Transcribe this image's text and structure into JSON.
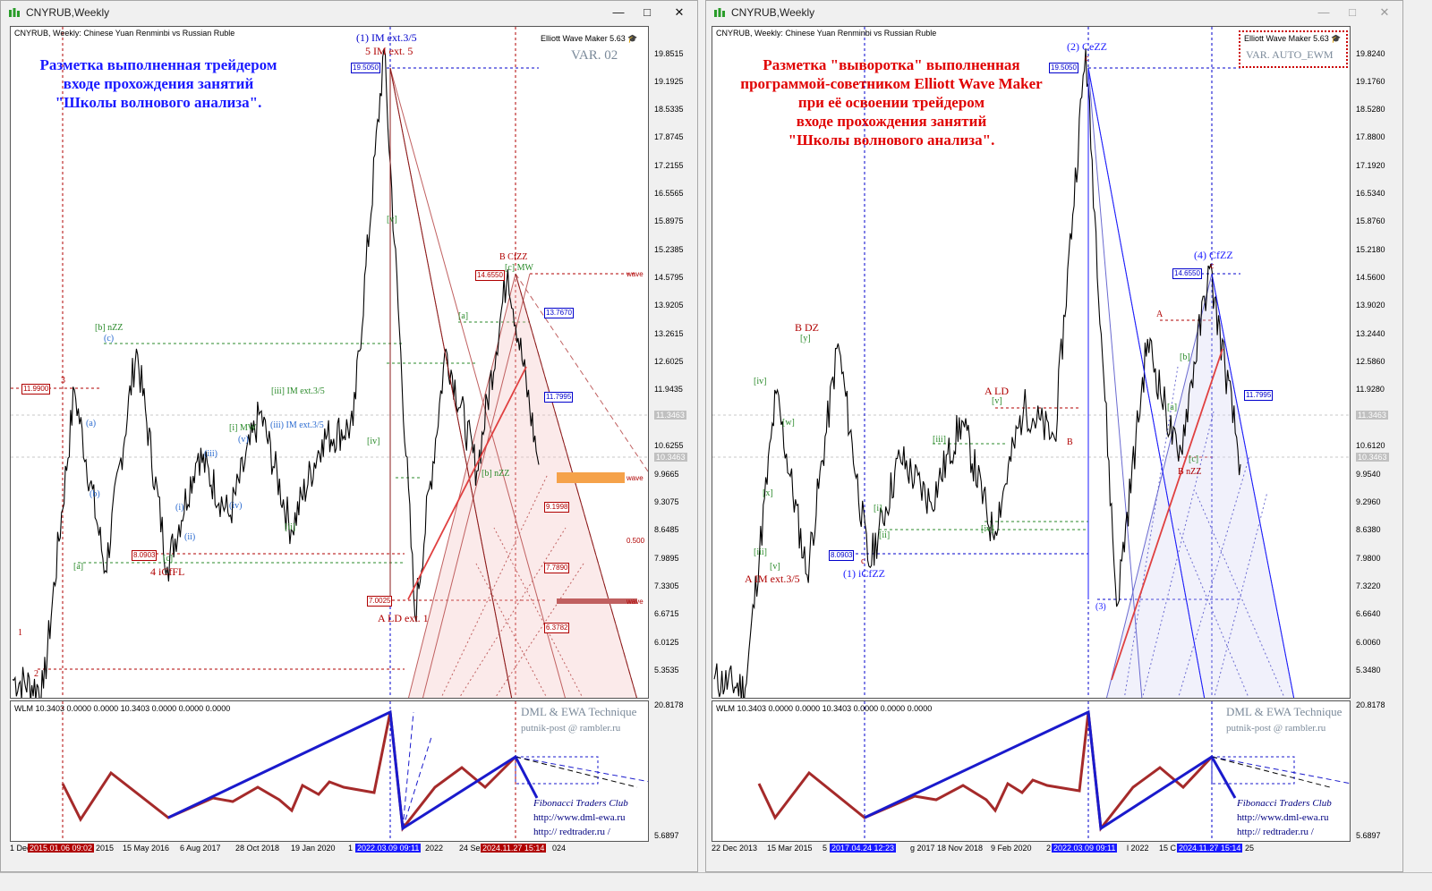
{
  "windows": [
    {
      "title": "CNYRUB,Weekly",
      "header": "CNYRUB, Weekly:  Chinese Yuan Renminbi vs Russian Ruble",
      "ewm": "Elliott Wave Maker 5.63",
      "var_label": "VAR. 02",
      "annotation": [
        "Разметка выполненная трейдером",
        "входе прохождения  занятий",
        "\"Школы волнового анализа\"."
      ],
      "annotation_color": "#1a1aff",
      "yaxis": [
        "19.8515",
        "19.1925",
        "18.5335",
        "17.8745",
        "17.2155",
        "16.5565",
        "15.8975",
        "15.2385",
        "14.5795",
        "13.9205",
        "13.2615",
        "12.6025",
        "11.9435",
        "11.3463",
        "10.6255",
        "9.9665",
        "9.3075",
        "8.6485",
        "7.9895",
        "7.3305",
        "6.6715",
        "6.0125",
        "5.3535"
      ],
      "sub_header": "WLM 10.3403 0.0000 0.0000 10.3403 0.0000 0.0000 0.0000",
      "sub_y": [
        "20.8178",
        "5.6897"
      ],
      "xaxis": [
        "1 Dec",
        "2015",
        "15 May 2016",
        "6 Aug 2017",
        "28 Oct 2018",
        "19 Jan 2020",
        "1",
        "2022",
        "24 Se",
        "024"
      ],
      "xtags": [
        "2015.01.06 09:02",
        "2022.03.09 09:11",
        "2024.11.27 15:14"
      ],
      "price_boxes": [
        "19.5050",
        "14.6550",
        "11.9900",
        "8.0903",
        "7.0025"
      ],
      "right_boxes": [
        "13.7670",
        "11.7995",
        "9.1998",
        "7.7890",
        "6.3782"
      ],
      "wave_labels": [
        "(1) IM ext.3/5",
        "5 IM ext. 5",
        "B CfZZ",
        "[c] MW",
        "[b] nZZ",
        "(c)",
        "3",
        "4 iCfFL",
        "[a]",
        "[c]",
        "(a)",
        "(b)",
        "(i)",
        "(ii)",
        "(iii)",
        "(iv)",
        "(v)",
        "[i] MW",
        "[ii]",
        "[iii] IM ext.3/5",
        "(iii) IM ext.3/5",
        "[iv]",
        "[v]",
        "A LD ext. 1",
        "[a]",
        "[b] nZZ",
        "1",
        "2",
        "10.3463"
      ],
      "levels": [
        "wave",
        "wave",
        "0.500",
        "wave"
      ]
    },
    {
      "title": "CNYRUB,Weekly",
      "header": "CNYRUB, Weekly:  Chinese Yuan Renminbi vs Russian Ruble",
      "ewm": "Elliott Wave Maker 5.63",
      "var_label": "VAR. AUTO_EWM",
      "annotation": [
        "Разметка \"выворотка\" выполненная",
        "программой-советником Elliott Wave Maker",
        "при её освоении трейдером",
        "входе прохождения  занятий",
        "\"Школы волнового анализа\"."
      ],
      "annotation_color": "#e00000",
      "yaxis": [
        "19.8240",
        "19.1760",
        "18.5280",
        "17.8800",
        "17.1920",
        "16.5340",
        "15.8760",
        "15.2180",
        "14.5600",
        "13.9020",
        "13.2440",
        "12.5860",
        "11.9280",
        "11.3463",
        "10.6120",
        "9.9540",
        "9.2960",
        "8.6380",
        "7.9800",
        "7.3220",
        "6.6640",
        "6.0060",
        "5.3480"
      ],
      "sub_header": "WLM 10.3403 0.0000 0.0000 10.3403 0.0000 0.0000 0.0000",
      "sub_y": [
        "20.8178",
        "5.6897"
      ],
      "xaxis": [
        "22 Dec 2013",
        "15 Mar 2015",
        "5",
        "g 2017",
        "18 Nov 2018",
        "9 Feb 2020",
        "2",
        "l 2022",
        "15 C",
        "25"
      ],
      "xtags": [
        "2017.04.24 12:23",
        "2022.03.09 09:11",
        "2024.11.27 15:14"
      ],
      "price_boxes": [
        "19.5050",
        "14.6550",
        "8.0903"
      ],
      "right_boxes": [
        "11.7995"
      ],
      "wave_labels": [
        "(2) CeZZ",
        "c",
        "(4) CfZZ",
        "c",
        "A",
        "B DZ",
        "[y]",
        "[iv]",
        "[w]",
        "[x]",
        "[iii]",
        "[v]",
        "A IM ext.3/5",
        "(1) iCfZZ",
        "c",
        "[i]",
        "[ii]",
        "[iii]",
        "[iv]",
        "A LD",
        "[v]",
        "B",
        "(3)",
        "[a]",
        "[b]",
        "[c]",
        "B nZZ",
        "10.3463"
      ]
    }
  ],
  "sub_panel": {
    "dml_title": "DML & EWA Technique",
    "email": "putnik-post @ rambler.ru",
    "fib": "Fibonacci     Traders     Club",
    "url1": "http://www.dml-ewa.ru",
    "url2": "http:// redtrader.ru /"
  },
  "chart_data": [
    {
      "type": "line",
      "title": "CNYRUB, Weekly:  Chinese Yuan Renminbi vs Russian Ruble",
      "ylim": [
        5.3535,
        19.8515
      ],
      "series": [
        {
          "values": [
            5.6,
            5.4,
            11.99,
            8.0,
            12.9,
            8.09,
            10.6,
            9.2,
            11.5,
            8.9,
            10.9,
            11.2,
            19.505,
            7.0,
            12.9,
            10.2,
            14.655,
            10.34
          ]
        }
      ]
    },
    {
      "type": "line",
      "title": "CNYRUB, Weekly:  Chinese Yuan Renminbi vs Russian Ruble",
      "ylim": [
        5.348,
        19.824
      ],
      "series": [
        {
          "values": [
            5.6,
            5.4,
            11.9,
            7.9,
            13.0,
            8.09,
            10.5,
            9.5,
            11.3,
            8.8,
            11.6,
            10.9,
            19.505,
            7.2,
            13.1,
            10.4,
            14.655,
            10.34
          ]
        }
      ]
    }
  ]
}
